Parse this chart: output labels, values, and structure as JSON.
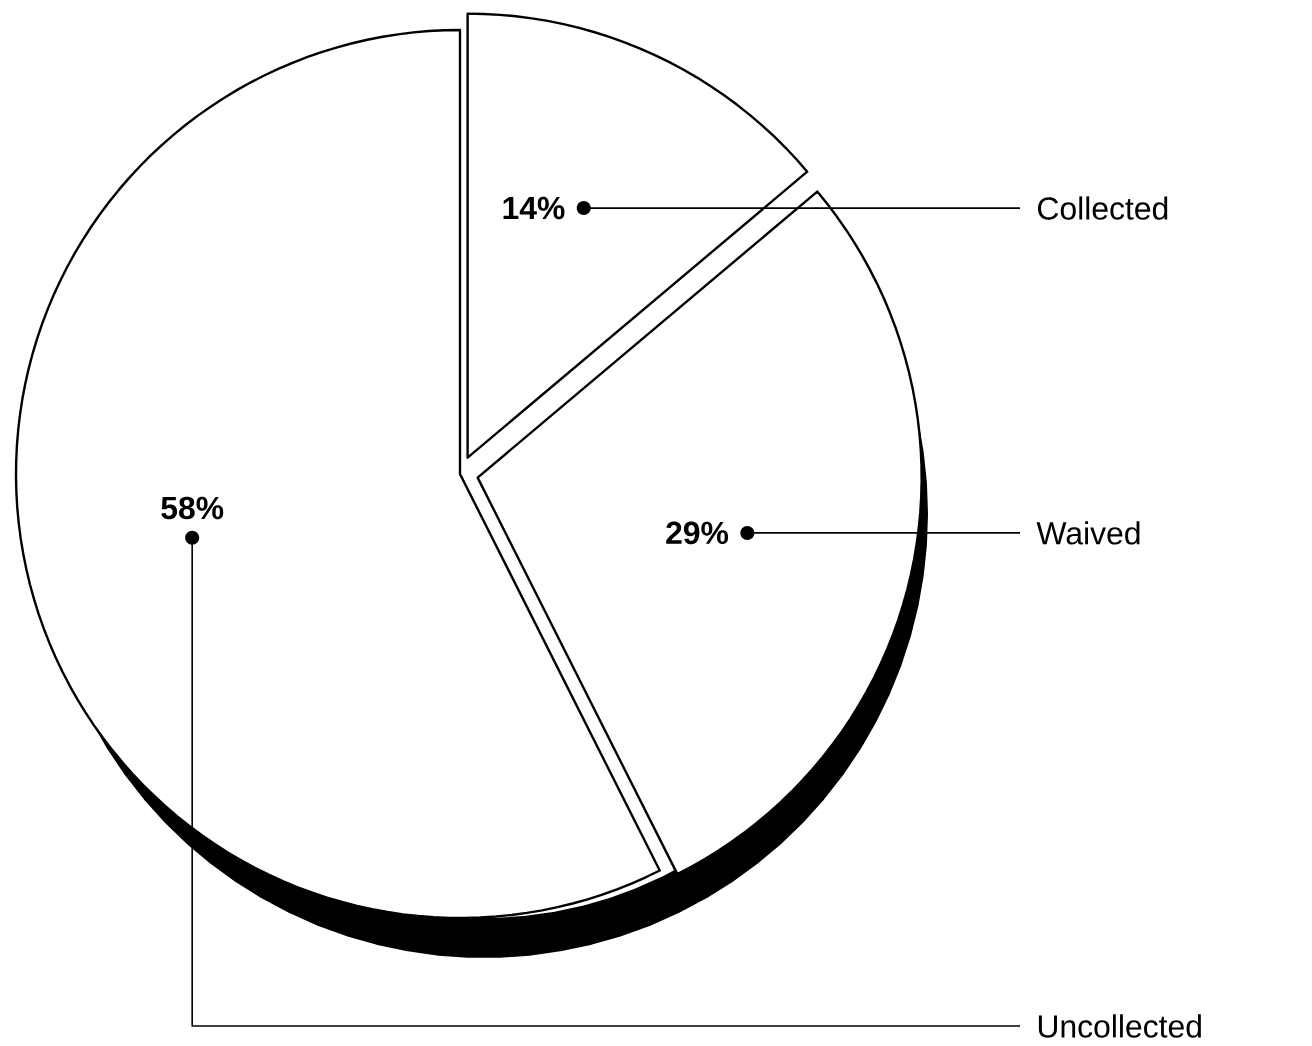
{
  "chart_data": {
    "type": "pie",
    "categories": [
      "Collected",
      "Waived",
      "Uncollected"
    ],
    "values": [
      14,
      29,
      58
    ],
    "value_labels": [
      "14%",
      "29%",
      "58%"
    ],
    "colors": [
      "#ffffff",
      "#ffffff",
      "#ffffff"
    ]
  }
}
